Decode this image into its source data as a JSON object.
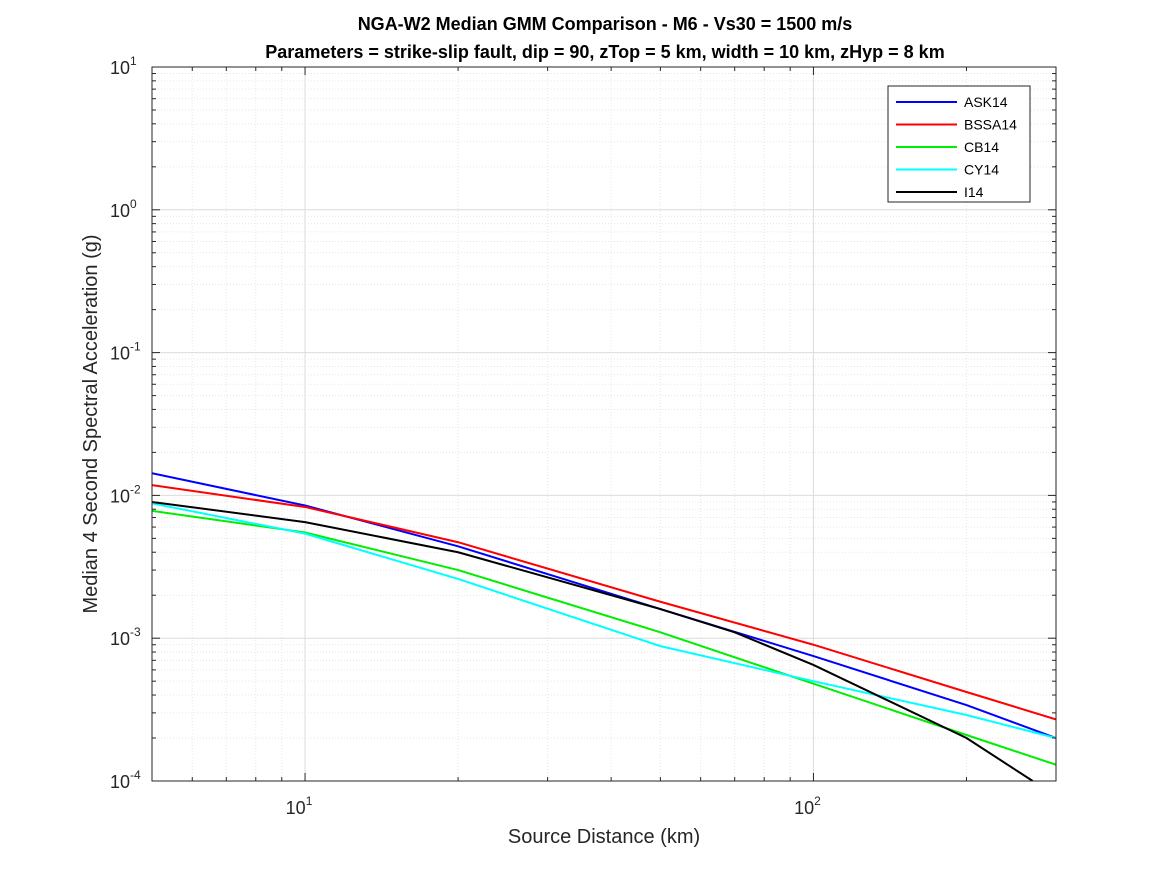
{
  "chart_data": {
    "type": "line",
    "title": "NGA-W2 Median GMM Comparison - M6 - Vs30 = 1500 m/s",
    "subtitle": "Parameters = strike-slip fault, dip = 90, zTop = 5 km, width = 10 km, zHyp = 8 km",
    "xlabel": "Source Distance (km)",
    "ylabel": "Median 4 Second Spectral Acceleration (g)",
    "xscale": "log",
    "yscale": "log",
    "xlim": [
      5,
      300
    ],
    "ylim": [
      0.0001,
      10
    ],
    "grid": true,
    "legend_position": "top-right",
    "x_ticks": [
      {
        "base": "10",
        "exp": "1",
        "value": 10
      },
      {
        "base": "10",
        "exp": "2",
        "value": 100
      }
    ],
    "y_ticks": [
      {
        "base": "10",
        "exp": "-4",
        "value": 0.0001
      },
      {
        "base": "10",
        "exp": "-3",
        "value": 0.001
      },
      {
        "base": "10",
        "exp": "-2",
        "value": 0.01
      },
      {
        "base": "10",
        "exp": "-1",
        "value": 0.1
      },
      {
        "base": "10",
        "exp": "0",
        "value": 1
      },
      {
        "base": "10",
        "exp": "1",
        "value": 10
      }
    ],
    "series": [
      {
        "name": "ASK14",
        "color": "#0000ff",
        "x": [
          5,
          10,
          20,
          50,
          100,
          200,
          300
        ],
        "y": [
          0.0143,
          0.0085,
          0.0044,
          0.0016,
          0.00075,
          0.00034,
          0.0002
        ]
      },
      {
        "name": "BSSA14",
        "color": "#ff0000",
        "x": [
          5,
          10,
          20,
          50,
          100,
          200,
          300
        ],
        "y": [
          0.0118,
          0.0083,
          0.0047,
          0.0018,
          0.0009,
          0.00042,
          0.00027
        ]
      },
      {
        "name": "CB14",
        "color": "#00ee00",
        "x": [
          5,
          10,
          20,
          50,
          100,
          200,
          300
        ],
        "y": [
          0.0078,
          0.0055,
          0.003,
          0.0011,
          0.00048,
          0.00021,
          0.00013
        ]
      },
      {
        "name": "CY14",
        "color": "#00ffff",
        "x": [
          5,
          10,
          20,
          50,
          100,
          200,
          300
        ],
        "y": [
          0.0088,
          0.0054,
          0.0026,
          0.00088,
          0.0005,
          0.00029,
          0.0002
        ]
      },
      {
        "name": "I14",
        "color": "#000000",
        "x": [
          5,
          10,
          20,
          50,
          70,
          100,
          200,
          270
        ],
        "y": [
          0.009,
          0.0065,
          0.004,
          0.0016,
          0.0011,
          0.00065,
          0.0002,
          0.0001
        ]
      }
    ]
  }
}
